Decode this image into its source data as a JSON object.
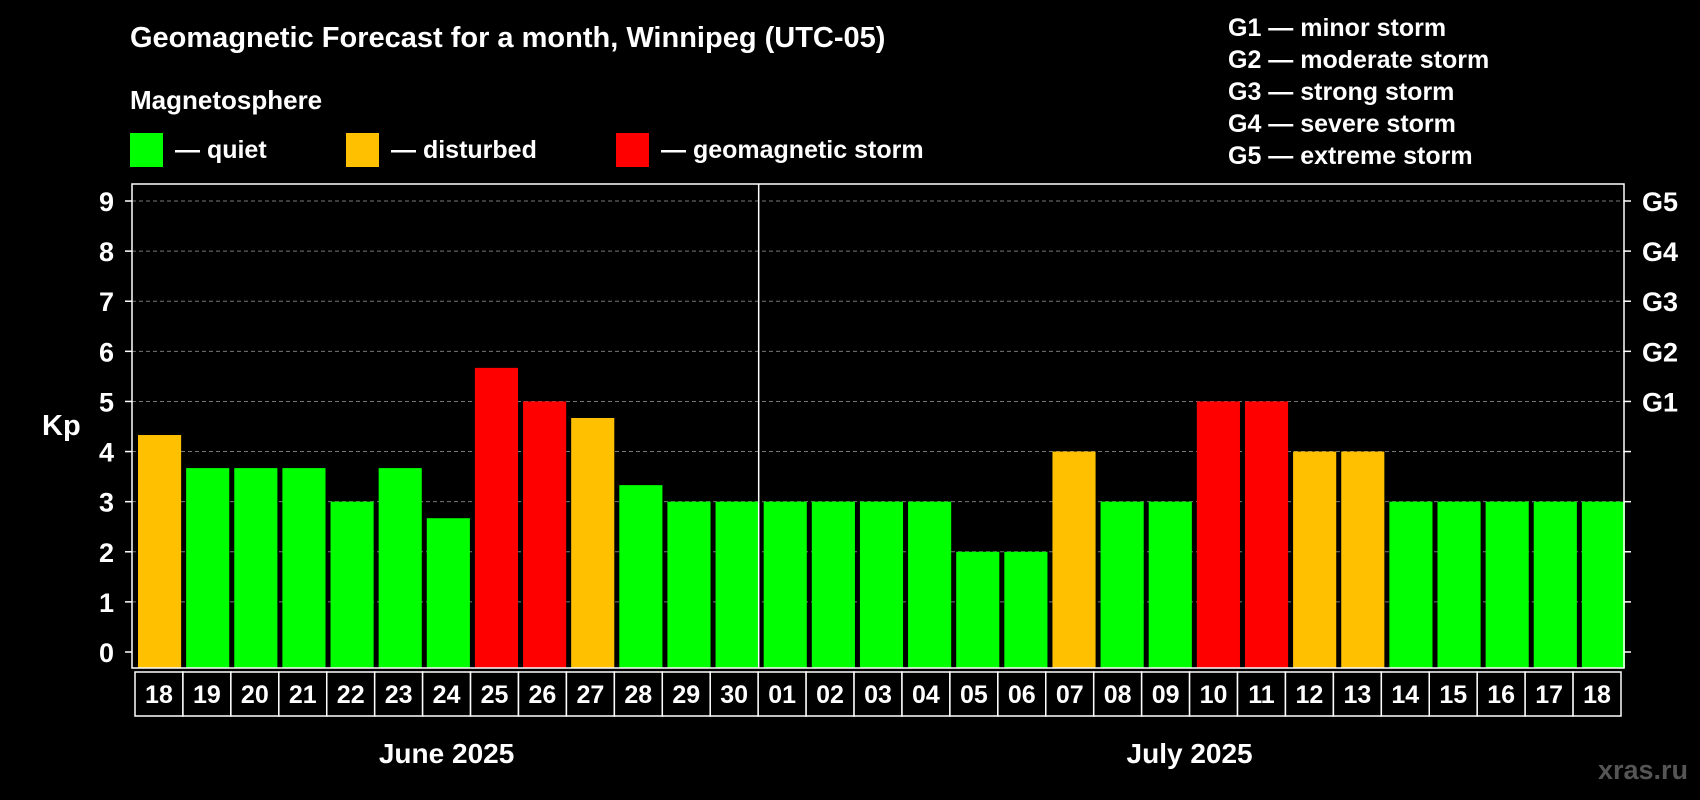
{
  "header": {
    "title": "Geomagnetic Forecast for a month, Winnipeg (UTC-05)",
    "subtitle": "Magnetosphere"
  },
  "legend": [
    {
      "label": "— quiet",
      "color": "#00ff00"
    },
    {
      "label": "— disturbed",
      "color": "#ffc000"
    },
    {
      "label": "— geomagnetic storm",
      "color": "#ff0000"
    }
  ],
  "storm_levels": [
    "G1 — minor storm",
    "G2 — moderate storm",
    "G3 — strong storm",
    "G4 — severe storm",
    "G5 — extreme storm"
  ],
  "watermark": "xras.ru",
  "chart_data": {
    "type": "bar",
    "ylabel": "Kp",
    "ylim": [
      0,
      9
    ],
    "yticks": [
      "0",
      "1",
      "2",
      "3",
      "4",
      "5",
      "6",
      "7",
      "8",
      "9"
    ],
    "right_axis_labels": [
      {
        "kp": 5,
        "label": "G1"
      },
      {
        "kp": 6,
        "label": "G2"
      },
      {
        "kp": 7,
        "label": "G3"
      },
      {
        "kp": 8,
        "label": "G4"
      },
      {
        "kp": 9,
        "label": "G5"
      }
    ],
    "grid": "dashed horizontal at each Kp level",
    "categories": [
      "18",
      "19",
      "20",
      "21",
      "22",
      "23",
      "24",
      "25",
      "26",
      "27",
      "28",
      "29",
      "30",
      "01",
      "02",
      "03",
      "04",
      "05",
      "06",
      "07",
      "08",
      "09",
      "10",
      "11",
      "12",
      "13",
      "14",
      "15",
      "16",
      "17",
      "18"
    ],
    "values": [
      4.33,
      3.67,
      3.67,
      3.67,
      3,
      3.67,
      2.67,
      5.67,
      5,
      4.67,
      3.33,
      3,
      3,
      3,
      3,
      3,
      3,
      2,
      2,
      4,
      3,
      3,
      5,
      5,
      4,
      4,
      3,
      3,
      3,
      3,
      3
    ],
    "status": [
      "disturbed",
      "quiet",
      "quiet",
      "quiet",
      "quiet",
      "quiet",
      "quiet",
      "storm",
      "storm",
      "disturbed",
      "quiet",
      "quiet",
      "quiet",
      "quiet",
      "quiet",
      "quiet",
      "quiet",
      "quiet",
      "quiet",
      "disturbed",
      "quiet",
      "quiet",
      "storm",
      "storm",
      "disturbed",
      "disturbed",
      "quiet",
      "quiet",
      "quiet",
      "quiet",
      "quiet"
    ],
    "status_colors": {
      "quiet": "#00ff00",
      "disturbed": "#ffc000",
      "storm": "#ff0000"
    },
    "months": [
      {
        "label": "June 2025",
        "first_index": 0,
        "count": 13
      },
      {
        "label": "July 2025",
        "first_index": 13,
        "count": 18
      }
    ]
  }
}
